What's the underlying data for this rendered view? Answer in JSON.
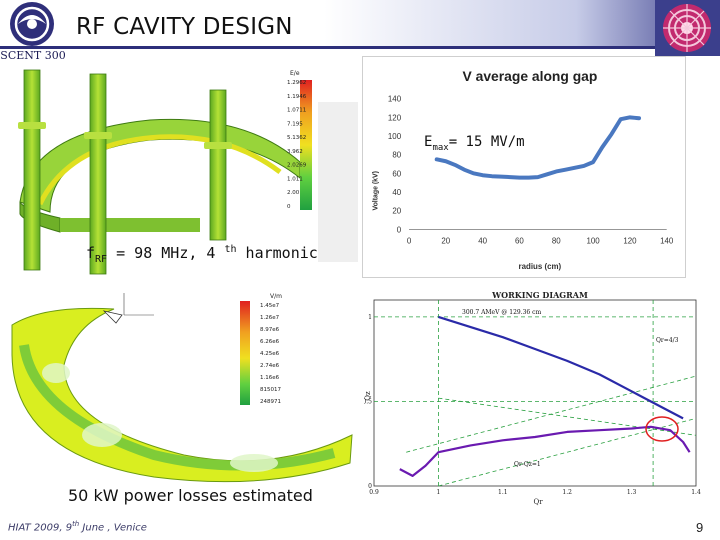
{
  "slide": {
    "title": "RF CAVITY DESIGN",
    "logo_text": "SCENT 300",
    "freq_label": {
      "prefix": "f",
      "sub": "RF",
      "mid": " = 98 MHz, 4 ",
      "sup": "th",
      "suffix": " harmonic"
    },
    "emax_label": {
      "prefix": "E",
      "sub": "max",
      "suffix": "= 15 MV/m"
    },
    "power_label": "50 kW power losses estimated",
    "footer": {
      "prefix": "HIAT 2009, ",
      "day": "9",
      "sup": "th",
      "suffix": " June , Venice"
    },
    "page_number": "9"
  },
  "field_plot_top": {
    "scale_title": "E/e",
    "scale_values": [
      "1.2962",
      "1.1946",
      "1.0711",
      "7.195",
      "5.1362",
      "3.962",
      "2.0269",
      "1.011",
      "2.00",
      "0"
    ]
  },
  "field_plot_bottom": {
    "scale_title": "V/m",
    "scale_values": [
      "1.45e7",
      "1.26e7",
      "8.97e6",
      "6.26e6",
      "4.25e6",
      "2.74e6",
      "1.16e6",
      "815017",
      "248971"
    ]
  },
  "chart_data": [
    {
      "type": "line",
      "title": "V average along gap",
      "xlabel": "radius (cm)",
      "ylabel": "Voltage (kV)",
      "xlim": [
        0,
        140
      ],
      "ylim": [
        0,
        140
      ],
      "xticks": [
        0,
        20,
        40,
        60,
        80,
        100,
        120,
        140
      ],
      "yticks": [
        0,
        20,
        40,
        60,
        80,
        100,
        120,
        140
      ],
      "grid": false,
      "series": [
        {
          "color": "#4a78c0",
          "x": [
            15,
            20,
            25,
            30,
            35,
            40,
            45,
            50,
            55,
            60,
            65,
            70,
            75,
            80,
            85,
            90,
            95,
            100,
            105,
            110,
            115,
            120,
            125
          ],
          "y": [
            75,
            73,
            69,
            64,
            60,
            58,
            57,
            56.5,
            56,
            55.5,
            55.5,
            56,
            59,
            62,
            64,
            66,
            68,
            72,
            88,
            102,
            118,
            120,
            119
          ]
        }
      ]
    },
    {
      "type": "line",
      "title": "WORKING DIAGRAM",
      "xlabel": "Qr",
      "ylabel": "Qz",
      "xlim": [
        0.9,
        1.4
      ],
      "ylim": [
        0,
        1.1
      ],
      "xticks": [
        0.9,
        1.0,
        1.1,
        1.2,
        1.3,
        1.4
      ],
      "yticks": [
        0,
        0.5,
        1
      ],
      "annotations": [
        "300.7 AMeV @ 129.36 cm",
        "Qr=4/3",
        "Qr-Qz=1"
      ],
      "series": [
        {
          "color": "#2a2aa8",
          "x": [
            1.0,
            1.05,
            1.1,
            1.15,
            1.2,
            1.25,
            1.3,
            1.33,
            1.36,
            1.38
          ],
          "y": [
            1.0,
            0.94,
            0.88,
            0.81,
            0.74,
            0.66,
            0.56,
            0.5,
            0.44,
            0.4
          ]
        },
        {
          "color": "#6a1ab0",
          "x": [
            0.94,
            0.96,
            0.98,
            1.0,
            1.05,
            1.1,
            1.15,
            1.2,
            1.25,
            1.3,
            1.33,
            1.36,
            1.38,
            1.39
          ],
          "y": [
            0.1,
            0.06,
            0.12,
            0.2,
            0.24,
            0.27,
            0.29,
            0.32,
            0.33,
            0.34,
            0.35,
            0.33,
            0.26,
            0.2
          ]
        }
      ]
    }
  ]
}
